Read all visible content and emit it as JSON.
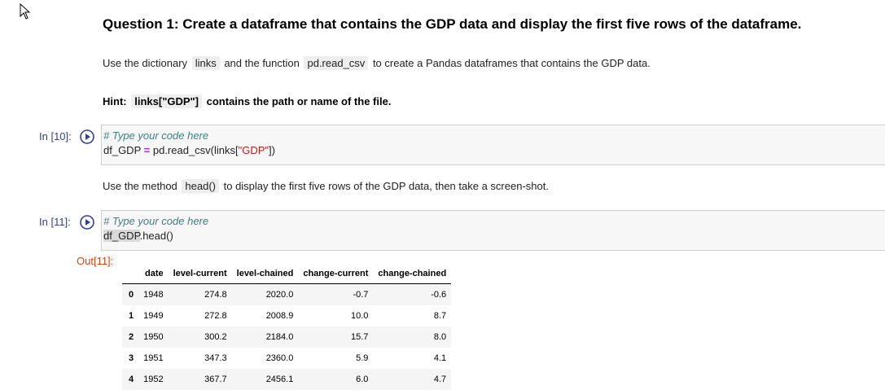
{
  "markdown": {
    "title": "Question 1: Create a dataframe that contains the GDP data and display the first five rows of the dataframe.",
    "p1_prefix": "Use the dictionary",
    "p1_code1": "links",
    "p1_mid": "and the function",
    "p1_code2": "pd.read_csv",
    "p1_suffix": "to create a Pandas dataframes that contains the GDP data.",
    "hint_prefix": "Hint:",
    "hint_code": "links[\"GDP\"]",
    "hint_suffix": "contains the path or name of the file.",
    "p3_prefix": "Use the method",
    "p3_code": "head()",
    "p3_suffix": "to display the first five rows of the GDP data, then take a screen-shot."
  },
  "cells": {
    "cell10": {
      "prompt": "In [10]:",
      "comment": "# Type your code here",
      "line2_var": "df_GDP",
      "line2_op": "=",
      "line2_fn": "pd.read_csv(links[",
      "line2_str": "\"GDP\"",
      "line2_end": "])"
    },
    "cell11": {
      "prompt": "In [11]:",
      "comment": "# Type your code here",
      "line2_var": "df_GDP",
      "line2_rest": ".head()",
      "out_prompt": "Out[11]:"
    }
  },
  "table": {
    "columns": [
      "",
      "date",
      "level-current",
      "level-chained",
      "change-current",
      "change-chained"
    ],
    "rows": [
      {
        "index": "0",
        "date": "1948",
        "level_current": "274.8",
        "level_chained": "2020.0",
        "change_current": "-0.7",
        "change_chained": "-0.6"
      },
      {
        "index": "1",
        "date": "1949",
        "level_current": "272.8",
        "level_chained": "2008.9",
        "change_current": "10.0",
        "change_chained": "8.7"
      },
      {
        "index": "2",
        "date": "1950",
        "level_current": "300.2",
        "level_chained": "2184.0",
        "change_current": "15.7",
        "change_chained": "8.0"
      },
      {
        "index": "3",
        "date": "1951",
        "level_current": "347.3",
        "level_chained": "2360.0",
        "change_current": "5.9",
        "change_chained": "4.1"
      },
      {
        "index": "4",
        "date": "1952",
        "level_current": "367.7",
        "level_chained": "2456.1",
        "change_current": "6.0",
        "change_chained": "4.7"
      }
    ]
  },
  "colors": {
    "prompt_in": "#303f9f",
    "prompt_out": "#d84315",
    "comment": "#408080",
    "string": "#ba2121"
  }
}
